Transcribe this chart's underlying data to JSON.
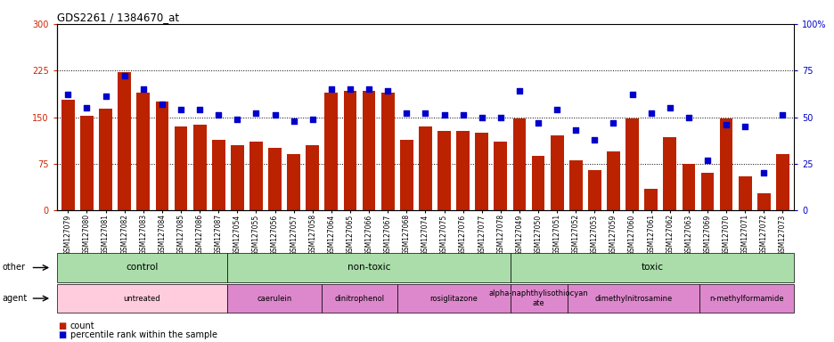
{
  "title": "GDS2261 / 1384670_at",
  "samples": [
    "GSM127079",
    "GSM127080",
    "GSM127081",
    "GSM127082",
    "GSM127083",
    "GSM127084",
    "GSM127085",
    "GSM127086",
    "GSM127087",
    "GSM127054",
    "GSM127055",
    "GSM127056",
    "GSM127057",
    "GSM127058",
    "GSM127064",
    "GSM127065",
    "GSM127066",
    "GSM127067",
    "GSM127068",
    "GSM127074",
    "GSM127075",
    "GSM127076",
    "GSM127077",
    "GSM127078",
    "GSM127049",
    "GSM127050",
    "GSM127051",
    "GSM127052",
    "GSM127053",
    "GSM127059",
    "GSM127060",
    "GSM127061",
    "GSM127062",
    "GSM127063",
    "GSM127069",
    "GSM127070",
    "GSM127071",
    "GSM127072",
    "GSM127073"
  ],
  "bar_values": [
    178,
    152,
    163,
    222,
    190,
    175,
    135,
    138,
    113,
    105,
    110,
    100,
    90,
    105,
    190,
    192,
    192,
    190,
    113,
    135,
    128,
    128,
    125,
    110,
    148,
    88,
    120,
    80,
    65,
    95,
    148,
    35,
    118,
    75,
    60,
    148,
    55,
    28,
    90
  ],
  "dot_values": [
    62,
    55,
    61,
    72,
    65,
    57,
    54,
    54,
    51,
    49,
    52,
    51,
    48,
    49,
    65,
    65,
    65,
    64,
    52,
    52,
    51,
    51,
    50,
    50,
    64,
    47,
    54,
    43,
    38,
    47,
    62,
    52,
    55,
    50,
    27,
    46,
    45,
    20,
    51
  ],
  "ylim_left": [
    0,
    300
  ],
  "ylim_right": [
    0,
    100
  ],
  "yticks_left": [
    0,
    75,
    150,
    225,
    300
  ],
  "yticks_right": [
    0,
    25,
    50,
    75,
    100
  ],
  "bar_color": "#bb2200",
  "dot_color": "#0000cc",
  "groups_other": [
    {
      "label": "control",
      "start": 0,
      "end": 9,
      "color": "#aaddaa"
    },
    {
      "label": "non-toxic",
      "start": 9,
      "end": 24,
      "color": "#aaddaa"
    },
    {
      "label": "toxic",
      "start": 24,
      "end": 39,
      "color": "#aaddaa"
    }
  ],
  "groups_agent": [
    {
      "label": "untreated",
      "start": 0,
      "end": 9,
      "color": "#ffccdd"
    },
    {
      "label": "caerulein",
      "start": 9,
      "end": 14,
      "color": "#dd88cc"
    },
    {
      "label": "dinitrophenol",
      "start": 14,
      "end": 18,
      "color": "#dd88cc"
    },
    {
      "label": "rosiglitazone",
      "start": 18,
      "end": 24,
      "color": "#dd88cc"
    },
    {
      "label": "alpha-naphthylisothiocyan\nate",
      "start": 24,
      "end": 27,
      "color": "#dd88cc"
    },
    {
      "label": "dimethylnitrosamine",
      "start": 27,
      "end": 34,
      "color": "#dd88cc"
    },
    {
      "label": "n-methylformamide",
      "start": 34,
      "end": 39,
      "color": "#dd88cc"
    }
  ]
}
